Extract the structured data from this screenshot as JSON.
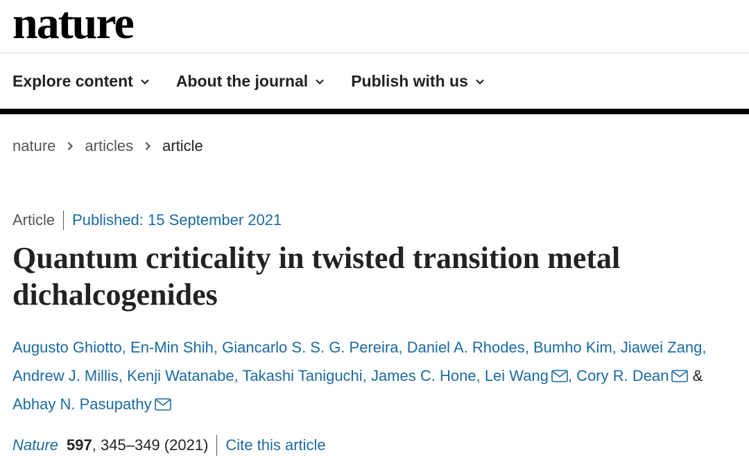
{
  "header": {
    "logo": "nature"
  },
  "nav": [
    "Explore content",
    "About the journal",
    "Publish with us"
  ],
  "breadcrumbs": [
    "nature",
    "articles",
    "article"
  ],
  "article": {
    "type": "Article",
    "published_label": "Published:",
    "published_date": "15 September 2021",
    "title": "Quantum criticality in twisted transition metal dichalcogenides",
    "authors": [
      {
        "name": "Augusto Ghiotto",
        "email": false
      },
      {
        "name": "En-Min Shih",
        "email": false
      },
      {
        "name": "Giancarlo S. S. G. Pereira",
        "email": false
      },
      {
        "name": "Daniel A. Rhodes",
        "email": false
      },
      {
        "name": "Bumho Kim",
        "email": false
      },
      {
        "name": "Jiawei Zang",
        "email": false
      },
      {
        "name": "Andrew J. Millis",
        "email": false
      },
      {
        "name": "Kenji Watanabe",
        "email": false
      },
      {
        "name": "Takashi Taniguchi",
        "email": false
      },
      {
        "name": "James C. Hone",
        "email": false
      },
      {
        "name": "Lei Wang",
        "email": true
      },
      {
        "name": "Cory R. Dean",
        "email": true
      },
      {
        "name": "Abhay N. Pasupathy",
        "email": true
      }
    ],
    "separator": ",",
    "conjunction": "&",
    "citation": {
      "journal": "Nature",
      "volume": 597,
      "pages": "345–349",
      "year": "(2021)",
      "cite_link": "Cite this article"
    }
  }
}
